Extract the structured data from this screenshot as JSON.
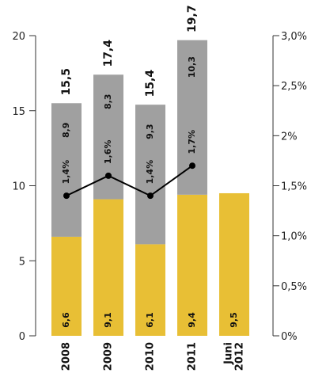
{
  "chart_data": {
    "type": "bar",
    "stacked": true,
    "categories": [
      "2008",
      "2009",
      "2010",
      "2011",
      "Juni 2012"
    ],
    "category_lines": [
      [
        "2008"
      ],
      [
        "2009"
      ],
      [
        "2010"
      ],
      [
        "2011"
      ],
      [
        "Juni",
        "2012"
      ]
    ],
    "series": [
      {
        "values": [
          6.6,
          9.1,
          6.1,
          9.4,
          9.5
        ],
        "labels": [
          "6,6",
          "9,1",
          "6,1",
          "9,4",
          "9,5"
        ],
        "color": "#E8BF35"
      },
      {
        "values": [
          8.9,
          8.3,
          9.3,
          10.3,
          null
        ],
        "labels": [
          "8,9",
          "8,3",
          "9,3",
          "10,3",
          ""
        ],
        "color": "#A0A0A0"
      }
    ],
    "totals": [
      "15,5",
      "17,4",
      "15,4",
      "19,7",
      ""
    ],
    "line_series": {
      "axis": "right",
      "values": [
        1.4,
        1.6,
        1.4,
        1.7
      ],
      "labels": [
        "1,4%",
        "1,6%",
        "1,4%",
        "1,7%"
      ],
      "color": "#000000"
    },
    "left_axis": {
      "min": 0,
      "max": 20,
      "ticks": [
        "0",
        "5",
        "10",
        "15",
        "20"
      ],
      "tick_values": [
        0,
        5,
        10,
        15,
        20
      ]
    },
    "right_axis": {
      "min": 0,
      "max": 3,
      "ticks": [
        "0%",
        "0,5%",
        "1,0%",
        "1,5%",
        "2%",
        "2,5%",
        "3,0%"
      ],
      "tick_values": [
        0,
        0.5,
        1,
        1.5,
        2,
        2.5,
        3
      ]
    },
    "title": "",
    "xlabel": "",
    "ylabel": "",
    "grid": false,
    "legend": "none"
  }
}
